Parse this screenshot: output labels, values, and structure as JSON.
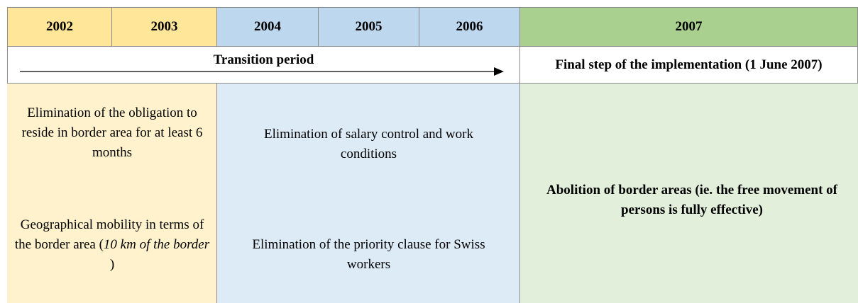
{
  "header": {
    "years": [
      "2002",
      "2003",
      "2004",
      "2005",
      "2006",
      "2007"
    ]
  },
  "timeline": {
    "transition": "Transition period",
    "final": "Final step of the implementation (1 June 2007)"
  },
  "body": {
    "phase1": {
      "item1": "Elimination of the obligation to reside in border area for at least 6 months",
      "item2": {
        "before": "Geographical mobility in terms of the border area (",
        "italic": "10 km of the border",
        "after": " )"
      }
    },
    "phase2": {
      "item1": "Elimination of salary control and work conditions",
      "item2": "Elimination of the priority clause for Swiss workers"
    },
    "phase3": {
      "item1": "Abolition of  border areas (ie. the free movement of persons is fully effective)"
    }
  }
}
